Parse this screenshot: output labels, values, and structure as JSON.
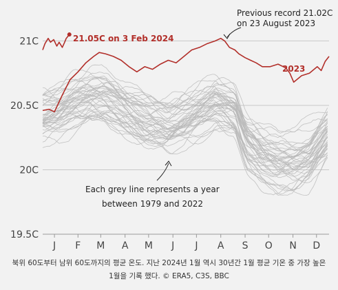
{
  "caption": {
    "line1": "북위 60도부터 남위 60도까지의 평균 온도. 지난 2024년 1월 역시 30년간 1월 평균 기온 중 가장 높은",
    "line2": "1월을 기록 했다. © ERA5, C3S, BBC"
  },
  "colors": {
    "accent": "#b22f2a",
    "grey_lines": "#b8b8b8",
    "grid": "#c8c8c8",
    "background": "#f2f2f2"
  },
  "chart_data": {
    "type": "line",
    "title": "",
    "xlabel": "",
    "ylabel": "",
    "ylim": [
      19.5,
      21.2
    ],
    "xlim": [
      0,
      365
    ],
    "grid": true,
    "y_ticks": [
      {
        "value": 21.0,
        "label": "21C"
      },
      {
        "value": 20.5,
        "label": "20.5C"
      },
      {
        "value": 20.0,
        "label": "20C"
      },
      {
        "value": 19.5,
        "label": "19.5C"
      }
    ],
    "x_ticks": [
      {
        "label": "J",
        "day": 15
      },
      {
        "label": "F",
        "day": 45
      },
      {
        "label": "M",
        "day": 74
      },
      {
        "label": "A",
        "day": 105
      },
      {
        "label": "M",
        "day": 135
      },
      {
        "label": "J",
        "day": 166
      },
      {
        "label": "J",
        "day": 196
      },
      {
        "label": "A",
        "day": 227
      },
      {
        "label": "S",
        "day": 258
      },
      {
        "label": "O",
        "day": 288
      },
      {
        "label": "N",
        "day": 319
      },
      {
        "label": "D",
        "day": 349
      }
    ],
    "grey_series_count": 44,
    "grey_template": {
      "x": [
        0,
        20,
        40,
        60,
        80,
        100,
        130,
        160,
        190,
        220,
        245,
        260,
        280,
        300,
        320,
        340,
        365
      ],
      "y": [
        20.42,
        20.45,
        20.52,
        20.56,
        20.55,
        20.48,
        20.38,
        20.34,
        20.42,
        20.52,
        20.45,
        20.2,
        20.1,
        20.05,
        20.05,
        20.1,
        20.3
      ]
    },
    "grey_spread": 0.3,
    "series": [
      {
        "name": "2023",
        "color": "#b22f2a",
        "x": [
          0,
          8,
          15,
          25,
          35,
          45,
          55,
          65,
          72,
          80,
          90,
          100,
          110,
          120,
          130,
          140,
          150,
          160,
          170,
          180,
          190,
          200,
          210,
          220,
          227,
          232,
          238,
          245,
          250,
          258,
          265,
          272,
          280,
          290,
          300,
          310,
          315,
          320,
          330,
          340,
          350,
          355,
          360,
          365
        ],
        "y": [
          20.46,
          20.47,
          20.45,
          20.58,
          20.7,
          20.76,
          20.83,
          20.88,
          20.91,
          20.9,
          20.88,
          20.85,
          20.8,
          20.76,
          20.8,
          20.78,
          20.82,
          20.85,
          20.83,
          20.88,
          20.93,
          20.95,
          20.98,
          21.0,
          21.02,
          21.0,
          20.95,
          20.93,
          20.9,
          20.87,
          20.85,
          20.83,
          20.8,
          20.8,
          20.82,
          20.79,
          20.75,
          20.68,
          20.73,
          20.75,
          20.8,
          20.77,
          20.84,
          20.88
        ]
      },
      {
        "name": "2024",
        "color": "#b22f2a",
        "x": [
          0,
          3,
          7,
          10,
          14,
          18,
          21,
          25,
          28,
          30,
          34
        ],
        "y": [
          20.93,
          20.98,
          21.02,
          20.99,
          21.01,
          20.96,
          20.99,
          20.95,
          20.99,
          21.02,
          21.05
        ]
      }
    ],
    "annotations": {
      "record_label": "21.05C on 3 Feb 2024",
      "previous_record_line1": "Previous record 21.02C",
      "previous_record_line2": "on 23 August 2023",
      "series_label_2023": "2023",
      "grey_note_line1": "Each grey line represents a year",
      "grey_note_line2": "between 1979 and 2022"
    }
  }
}
